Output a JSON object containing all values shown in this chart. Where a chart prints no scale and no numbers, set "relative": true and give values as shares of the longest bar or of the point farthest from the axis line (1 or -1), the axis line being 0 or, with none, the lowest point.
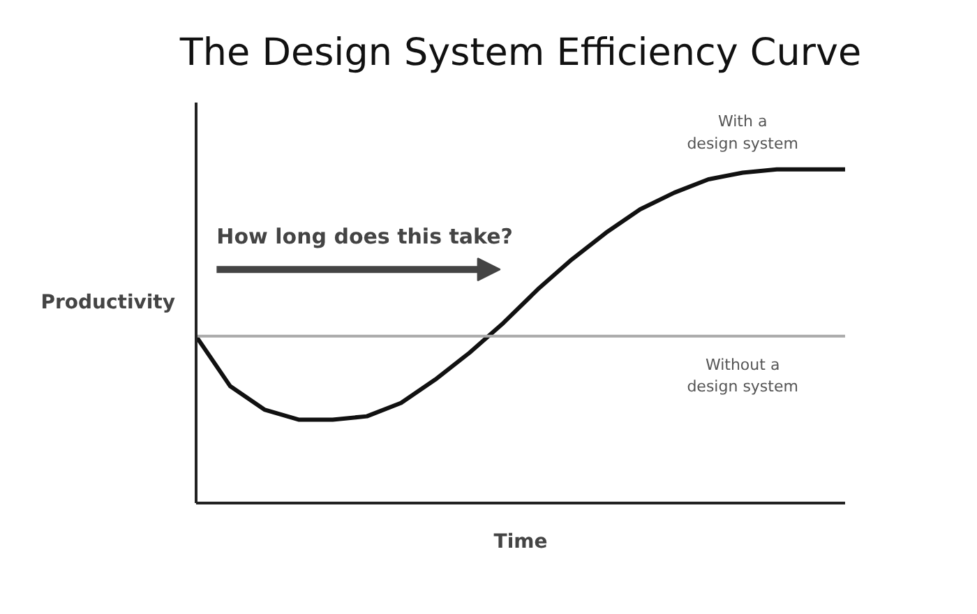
{
  "chart_data": {
    "type": "line",
    "title": "The Design System Efficiency Curve",
    "xlabel": "Time",
    "ylabel": "Productivity",
    "relative": true,
    "marker": "none",
    "line_style": "solid",
    "categories": [
      null,
      null,
      null,
      null,
      null,
      null,
      null,
      null,
      null,
      null,
      null,
      null,
      null,
      null,
      null,
      null,
      null,
      null,
      null,
      null
    ],
    "series": [
      {
        "name": "With a design system",
        "color": "#111111",
        "values": [
          0.5,
          0.35,
          0.28,
          0.25,
          0.25,
          0.26,
          0.3,
          0.37,
          0.45,
          0.54,
          0.64,
          0.73,
          0.81,
          0.88,
          0.93,
          0.97,
          0.99,
          1.0,
          1.0,
          1.0
        ]
      },
      {
        "name": "Without a design system",
        "color": "#aaaaaa",
        "values": [
          0.5,
          0.5,
          0.5,
          0.5,
          0.5,
          0.5,
          0.5,
          0.5,
          0.5,
          0.5,
          0.5,
          0.5,
          0.5,
          0.5,
          0.5,
          0.5,
          0.5,
          0.5,
          0.5,
          0.5
        ]
      }
    ],
    "annotations": [
      "How long does this take?"
    ]
  }
}
